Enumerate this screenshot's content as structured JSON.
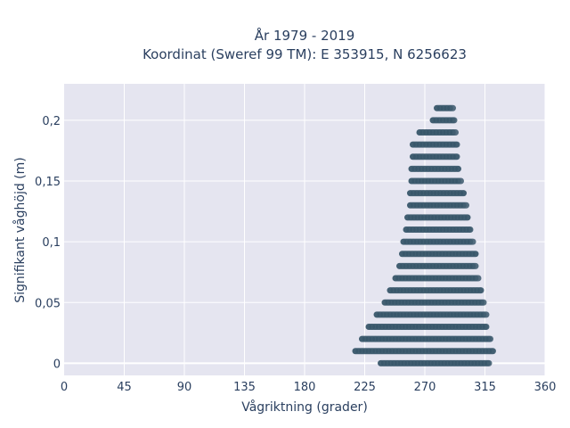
{
  "chart_data": {
    "type": "scatter",
    "title_line1": "År 1979 - 2019",
    "title_line2": "Koordinat (Sweref 99 TM): E 353915, N 6256623",
    "xlabel": "Vågriktning (grader)",
    "ylabel": "Signifikant våghöjd (m)",
    "xlim": [
      0,
      360
    ],
    "ylim": [
      -0.01,
      0.23
    ],
    "x_ticks": [
      0,
      45,
      90,
      135,
      180,
      225,
      270,
      315,
      360
    ],
    "y_ticks": [
      0,
      0.05,
      0.1,
      0.15,
      0.2
    ],
    "x_tick_labels": [
      "0",
      "45",
      "90",
      "135",
      "180",
      "225",
      "270",
      "315",
      "360"
    ],
    "y_tick_labels": [
      "0",
      "0,05",
      "0,1",
      "0,15",
      "0,2"
    ],
    "grid": true,
    "marker_color": "#2f4f63",
    "background": "#e5e5f0",
    "bands": [
      {
        "y": 0.0,
        "x_min": 237,
        "x_max": 318
      },
      {
        "y": 0.01,
        "x_min": 218,
        "x_max": 321
      },
      {
        "y": 0.02,
        "x_min": 223,
        "x_max": 319
      },
      {
        "y": 0.03,
        "x_min": 228,
        "x_max": 316
      },
      {
        "y": 0.04,
        "x_min": 234,
        "x_max": 316
      },
      {
        "y": 0.05,
        "x_min": 240,
        "x_max": 314
      },
      {
        "y": 0.06,
        "x_min": 244,
        "x_max": 312
      },
      {
        "y": 0.07,
        "x_min": 248,
        "x_max": 310
      },
      {
        "y": 0.08,
        "x_min": 251,
        "x_max": 308
      },
      {
        "y": 0.09,
        "x_min": 253,
        "x_max": 308
      },
      {
        "y": 0.1,
        "x_min": 254,
        "x_max": 306
      },
      {
        "y": 0.11,
        "x_min": 256,
        "x_max": 304
      },
      {
        "y": 0.12,
        "x_min": 257,
        "x_max": 302
      },
      {
        "y": 0.13,
        "x_min": 259,
        "x_max": 301
      },
      {
        "y": 0.14,
        "x_min": 259,
        "x_max": 299
      },
      {
        "y": 0.15,
        "x_min": 260,
        "x_max": 297
      },
      {
        "y": 0.16,
        "x_min": 260,
        "x_max": 295
      },
      {
        "y": 0.17,
        "x_min": 261,
        "x_max": 294
      },
      {
        "y": 0.18,
        "x_min": 261,
        "x_max": 294
      },
      {
        "y": 0.19,
        "x_min": 266,
        "x_max": 293
      },
      {
        "y": 0.2,
        "x_min": 276,
        "x_max": 292
      },
      {
        "y": 0.21,
        "x_min": 279,
        "x_max": 291
      }
    ]
  }
}
